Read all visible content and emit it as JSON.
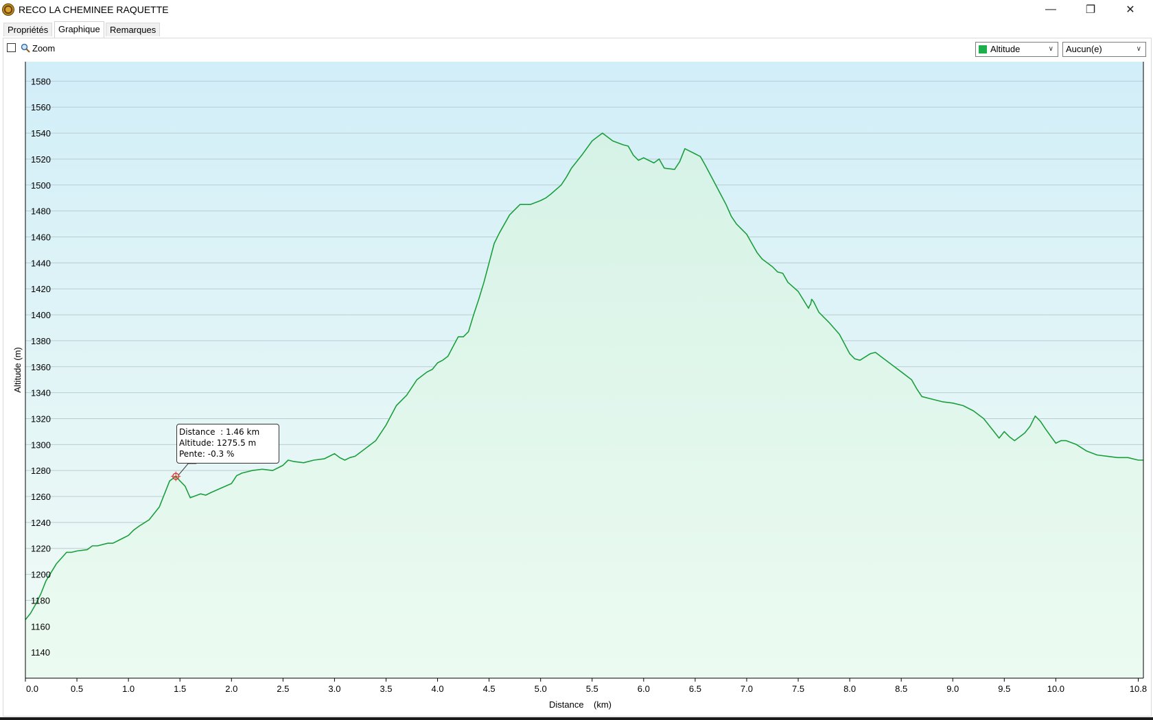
{
  "window": {
    "title": "RECO LA CHEMINEE RAQUETTE",
    "minimize_glyph": "—",
    "maximize_glyph": "❐",
    "close_glyph": "✕"
  },
  "tabs": [
    {
      "label": "Propriétés",
      "active": false
    },
    {
      "label": "Graphique",
      "active": true
    },
    {
      "label": "Remarques",
      "active": false
    }
  ],
  "toolbar": {
    "zoom_label": "Zoom",
    "zoom_checked": false,
    "series_select": "Altitude",
    "series_color": "#1db04a",
    "secondary_select": "Aucun(e)"
  },
  "tooltip": {
    "line1": "Distance  : 1.46 km",
    "line2": "Altitude: 1275.5 m",
    "line3": "Pente: -0.3 %"
  },
  "chart_data": {
    "type": "area",
    "xlabel": "Distance    (km)",
    "ylabel": "Altitude (m)",
    "xlim": [
      0.0,
      10.85
    ],
    "ylim": [
      1120,
      1595
    ],
    "x_ticks": [
      0.0,
      0.5,
      1.0,
      1.5,
      2.0,
      2.5,
      3.0,
      3.5,
      4.0,
      4.5,
      5.0,
      5.5,
      6.0,
      6.5,
      7.0,
      7.5,
      8.0,
      8.5,
      9.0,
      9.5,
      10.0,
      10.8
    ],
    "x_tick_labels": [
      "0.0",
      "0.5",
      "1.0",
      "1.5",
      "2.0",
      "2.5",
      "3.0",
      "3.5",
      "4.0",
      "4.5",
      "5.0",
      "5.5",
      "6.0",
      "6.5",
      "7.0",
      "7.5",
      "8.0",
      "8.5",
      "9.0",
      "9.5",
      "10.0",
      "10.8"
    ],
    "y_ticks": [
      1140,
      1160,
      1180,
      1200,
      1220,
      1240,
      1260,
      1280,
      1300,
      1320,
      1340,
      1360,
      1380,
      1400,
      1420,
      1440,
      1460,
      1480,
      1500,
      1520,
      1540,
      1560,
      1580
    ],
    "grid": true,
    "line_color": "#1a9e3c",
    "highlight": {
      "x": 1.46,
      "y": 1275.5
    },
    "series": [
      {
        "name": "Altitude",
        "x": [
          0.0,
          0.05,
          0.1,
          0.15,
          0.2,
          0.3,
          0.4,
          0.45,
          0.5,
          0.6,
          0.65,
          0.7,
          0.8,
          0.85,
          0.9,
          0.95,
          1.0,
          1.05,
          1.1,
          1.2,
          1.3,
          1.35,
          1.4,
          1.46,
          1.5,
          1.55,
          1.6,
          1.7,
          1.75,
          1.8,
          2.0,
          2.05,
          2.1,
          2.15,
          2.2,
          2.3,
          2.4,
          2.45,
          2.5,
          2.55,
          2.6,
          2.7,
          2.8,
          2.9,
          3.0,
          3.05,
          3.1,
          3.15,
          3.2,
          3.3,
          3.4,
          3.5,
          3.6,
          3.7,
          3.8,
          3.9,
          3.95,
          4.0,
          4.05,
          4.1,
          4.2,
          4.25,
          4.3,
          4.35,
          4.4,
          4.45,
          4.5,
          4.55,
          4.6,
          4.7,
          4.8,
          4.85,
          4.9,
          5.0,
          5.05,
          5.1,
          5.2,
          5.25,
          5.3,
          5.4,
          5.5,
          5.55,
          5.6,
          5.7,
          5.8,
          5.85,
          5.9,
          5.95,
          6.0,
          6.1,
          6.15,
          6.2,
          6.3,
          6.35,
          6.4,
          6.5,
          6.55,
          6.6,
          6.7,
          6.8,
          6.85,
          6.9,
          7.0,
          7.05,
          7.1,
          7.15,
          7.2,
          7.25,
          7.3,
          7.35,
          7.4,
          7.5,
          7.6,
          7.61,
          7.62,
          7.63,
          7.65,
          7.7,
          7.8,
          7.9,
          8.0,
          8.05,
          8.1,
          8.2,
          8.25,
          8.3,
          8.4,
          8.5,
          8.6,
          8.65,
          8.7,
          8.8,
          8.9,
          9.0,
          9.1,
          9.2,
          9.3,
          9.4,
          9.45,
          9.5,
          9.55,
          9.6,
          9.65,
          9.7,
          9.75,
          9.8,
          9.85,
          9.9,
          10.0,
          10.05,
          10.1,
          10.2,
          10.3,
          10.4,
          10.5,
          10.6,
          10.7,
          10.8,
          10.85
        ],
        "values": [
          1165,
          1170,
          1177,
          1185,
          1195,
          1208,
          1217,
          1217,
          1218,
          1219,
          1222,
          1222,
          1224,
          1224,
          1226,
          1228,
          1230,
          1234,
          1237,
          1242,
          1252,
          1262,
          1272,
          1275.5,
          1272,
          1268,
          1259,
          1262,
          1261,
          1263,
          1270,
          1276,
          1278,
          1279,
          1280,
          1281,
          1280,
          1282,
          1284,
          1288,
          1287,
          1286,
          1288,
          1289,
          1293,
          1290,
          1288,
          1290,
          1291,
          1297,
          1303,
          1315,
          1330,
          1338,
          1350,
          1356,
          1358,
          1363,
          1365,
          1368,
          1383,
          1383,
          1387,
          1400,
          1412,
          1425,
          1440,
          1455,
          1463,
          1477,
          1485,
          1485,
          1485,
          1488,
          1490,
          1493,
          1500,
          1506,
          1513,
          1523,
          1534,
          1537,
          1540,
          1534,
          1531,
          1530,
          1523,
          1519,
          1521,
          1517,
          1520,
          1513,
          1512,
          1518,
          1528,
          1524,
          1522,
          1515,
          1500,
          1485,
          1476,
          1470,
          1462,
          1455,
          1448,
          1443,
          1440,
          1437,
          1433,
          1432,
          1425,
          1418,
          1405,
          1407,
          1408,
          1412,
          1410,
          1402,
          1394,
          1385,
          1370,
          1366,
          1365,
          1370,
          1371,
          1368,
          1362,
          1356,
          1350,
          1343,
          1337,
          1335,
          1333,
          1332,
          1330,
          1326,
          1320,
          1310,
          1305,
          1310,
          1306,
          1303,
          1306,
          1309,
          1314,
          1322,
          1318,
          1312,
          1301,
          1303,
          1303,
          1300,
          1295,
          1292,
          1291,
          1290,
          1290,
          1288,
          1288
        ]
      }
    ]
  }
}
